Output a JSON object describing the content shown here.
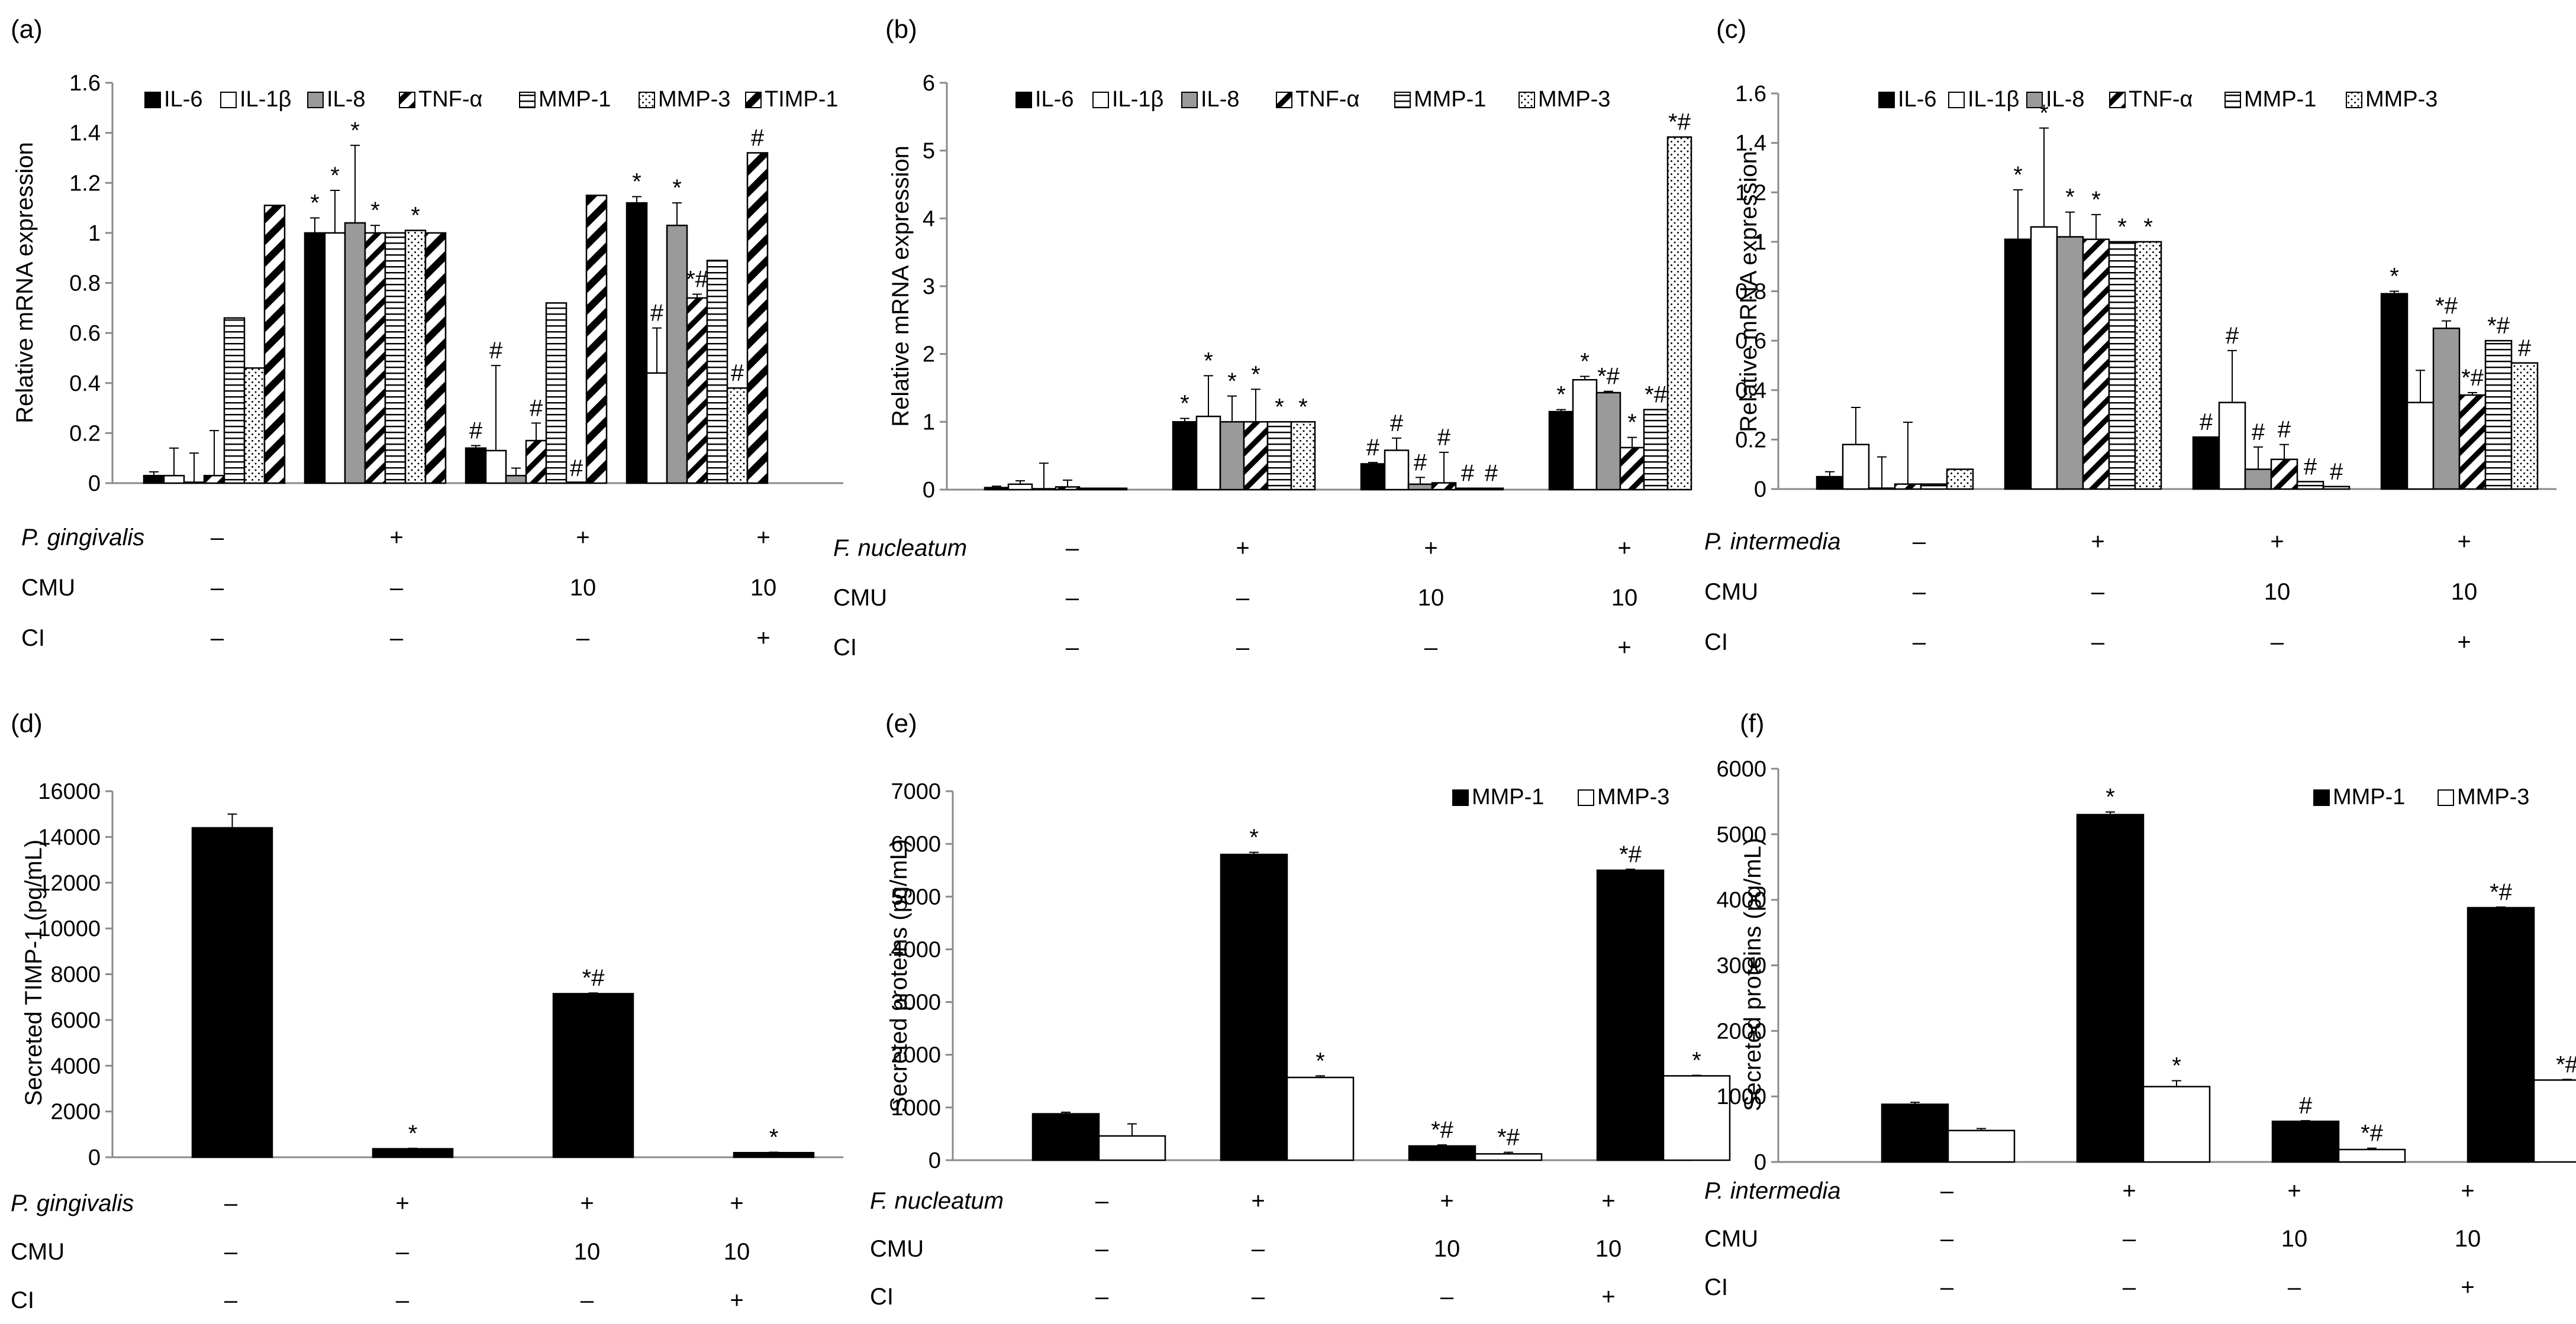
{
  "chart_data": [
    {
      "type": "bar",
      "panel": "(a)",
      "ylabel": "Relative mRNA expression",
      "ylim": [
        0,
        1.6
      ],
      "yticks": [
        0,
        0.2,
        0.4,
        0.6,
        0.8,
        1,
        1.2,
        1.4,
        1.6
      ],
      "legend": "top",
      "series": [
        {
          "name": "IL-6",
          "pattern": "black",
          "values": [
            0.03,
            1.0,
            0.14,
            1.12
          ],
          "errors": [
            0.015,
            0.06,
            0.01,
            0.025
          ],
          "marks": [
            "",
            "*",
            "#",
            "*"
          ]
        },
        {
          "name": "IL-1β",
          "pattern": "white",
          "values": [
            0.03,
            1.0,
            0.13,
            0.44
          ],
          "errors": [
            0.11,
            0.17,
            0.34,
            0.18
          ],
          "marks": [
            "",
            "*",
            "#",
            "#"
          ]
        },
        {
          "name": "IL-8",
          "pattern": "gray",
          "values": [
            0.0,
            1.04,
            0.03,
            1.03
          ],
          "errors": [
            0.12,
            0.31,
            0.03,
            0.09
          ],
          "marks": [
            "",
            "*",
            "",
            "*"
          ]
        },
        {
          "name": "TNF-α",
          "pattern": "diag",
          "values": [
            0.03,
            1.0,
            0.17,
            0.74
          ],
          "errors": [
            0.18,
            0.03,
            0.07,
            0.015
          ],
          "marks": [
            "",
            "*",
            "#",
            "*#"
          ]
        },
        {
          "name": "MMP-1",
          "pattern": "hline",
          "values": [
            0.66,
            1.0,
            0.72,
            0.89
          ],
          "errors": [
            0,
            0,
            0,
            0
          ],
          "marks": [
            "",
            "",
            "",
            ""
          ]
        },
        {
          "name": "MMP-3",
          "pattern": "dots",
          "values": [
            0.46,
            1.01,
            0.0,
            0.38
          ],
          "errors": [
            0,
            0,
            0,
            0
          ],
          "marks": [
            "",
            "*",
            "#",
            "#"
          ]
        },
        {
          "name": "TIMP-1",
          "pattern": "diagthick",
          "values": [
            1.11,
            1.0,
            1.15,
            1.32
          ],
          "errors": [
            0,
            0,
            0,
            0
          ],
          "marks": [
            "",
            "",
            "",
            "#"
          ]
        }
      ],
      "conditions": [
        {
          "label": "P. gingivalis",
          "values": [
            "–",
            "+",
            "+",
            "+"
          ]
        },
        {
          "label": "CMU",
          "values": [
            "–",
            "–",
            "10",
            "10"
          ]
        },
        {
          "label": "CI",
          "values": [
            "–",
            "–",
            "–",
            "+"
          ]
        }
      ]
    },
    {
      "type": "bar",
      "panel": "(b)",
      "ylabel": "Relative mRNA expression",
      "ylim": [
        0,
        6
      ],
      "yticks": [
        0,
        1,
        2,
        3,
        4,
        5,
        6
      ],
      "legend": "top",
      "series": [
        {
          "name": "IL-6",
          "pattern": "black",
          "values": [
            0.03,
            1.0,
            0.38,
            1.15
          ],
          "errors": [
            0.02,
            0.05,
            0.02,
            0.03
          ],
          "marks": [
            "",
            "*",
            "#",
            "*"
          ]
        },
        {
          "name": "IL-1β",
          "pattern": "white",
          "values": [
            0.08,
            1.08,
            0.58,
            1.62
          ],
          "errors": [
            0.05,
            0.6,
            0.18,
            0.05
          ],
          "marks": [
            "",
            "*",
            "#",
            "*"
          ]
        },
        {
          "name": "IL-8",
          "pattern": "gray",
          "values": [
            0.01,
            1.0,
            0.08,
            1.43
          ],
          "errors": [
            0.38,
            0.38,
            0.1,
            0.02
          ],
          "marks": [
            "",
            "*",
            "#",
            "*#"
          ]
        },
        {
          "name": "TNF-α",
          "pattern": "diag",
          "values": [
            0.04,
            1.0,
            0.1,
            0.62
          ],
          "errors": [
            0.1,
            0.48,
            0.45,
            0.15
          ],
          "marks": [
            "",
            "*",
            "#",
            "*"
          ]
        },
        {
          "name": "MMP-1",
          "pattern": "hline",
          "values": [
            0.02,
            1.0,
            0.02,
            1.18
          ],
          "errors": [
            0,
            0,
            0,
            0
          ],
          "marks": [
            "",
            "*",
            "#",
            "*#"
          ]
        },
        {
          "name": "MMP-3",
          "pattern": "dots",
          "values": [
            0.02,
            1.0,
            0.02,
            5.2
          ],
          "errors": [
            0,
            0,
            0,
            0
          ],
          "marks": [
            "",
            "*",
            "#",
            "*#"
          ]
        }
      ],
      "conditions": [
        {
          "label": "F. nucleatum",
          "values": [
            "–",
            "+",
            "+",
            "+"
          ]
        },
        {
          "label": "CMU",
          "values": [
            "–",
            "–",
            "10",
            "10"
          ]
        },
        {
          "label": "CI",
          "values": [
            "–",
            "–",
            "–",
            "+"
          ]
        }
      ]
    },
    {
      "type": "bar",
      "panel": "(c)",
      "ylabel": "Relative mRNA expression",
      "ylim": [
        0,
        1.6
      ],
      "yticks": [
        0,
        0.2,
        0.4,
        0.6,
        0.8,
        1,
        1.2,
        1.4,
        1.6
      ],
      "legend": "top",
      "series": [
        {
          "name": "IL-6",
          "pattern": "black",
          "values": [
            0.05,
            1.01,
            0.21,
            0.79
          ],
          "errors": [
            0.02,
            0.2,
            0.0,
            0.01
          ],
          "marks": [
            "",
            "*",
            "#",
            "*"
          ]
        },
        {
          "name": "IL-1β",
          "pattern": "white",
          "values": [
            0.18,
            1.06,
            0.35,
            0.35
          ],
          "errors": [
            0.15,
            0.4,
            0.21,
            0.13
          ],
          "marks": [
            "",
            "*",
            "#",
            ""
          ]
        },
        {
          "name": "IL-8",
          "pattern": "gray",
          "values": [
            0.0,
            1.02,
            0.08,
            0.65
          ],
          "errors": [
            0.13,
            0.1,
            0.09,
            0.03
          ],
          "marks": [
            "",
            "*",
            "#",
            "*#"
          ]
        },
        {
          "name": "TNF-α",
          "pattern": "diag",
          "values": [
            0.02,
            1.01,
            0.12,
            0.38
          ],
          "errors": [
            0.25,
            0.1,
            0.06,
            0.01
          ],
          "marks": [
            "",
            "*",
            "#",
            "*#"
          ]
        },
        {
          "name": "MMP-1",
          "pattern": "hline",
          "values": [
            0.02,
            1.0,
            0.03,
            0.6
          ],
          "errors": [
            0,
            0,
            0,
            0
          ],
          "marks": [
            "",
            "*",
            "#",
            "*#"
          ]
        },
        {
          "name": "MMP-3",
          "pattern": "dots",
          "values": [
            0.08,
            1.0,
            0.01,
            0.51
          ],
          "errors": [
            0,
            0,
            0,
            0
          ],
          "marks": [
            "",
            "*",
            "#",
            "#"
          ]
        }
      ],
      "conditions": [
        {
          "label": "P. intermedia",
          "values": [
            "–",
            "+",
            "+",
            "+"
          ]
        },
        {
          "label": "CMU",
          "values": [
            "–",
            "–",
            "10",
            "10"
          ]
        },
        {
          "label": "CI",
          "values": [
            "–",
            "–",
            "–",
            "+"
          ]
        }
      ]
    },
    {
      "type": "bar",
      "panel": "(d)",
      "ylabel": "Secreted TIMP-1 (pg/mL)",
      "ylim": [
        0,
        16000
      ],
      "yticks": [
        0,
        2000,
        4000,
        6000,
        8000,
        10000,
        12000,
        14000,
        16000
      ],
      "legend": "none",
      "series": [
        {
          "name": "TIMP-1",
          "pattern": "black",
          "values": [
            14400,
            370,
            7150,
            200
          ],
          "errors": [
            600,
            20,
            30,
            20
          ],
          "marks": [
            "",
            "*",
            "*#",
            "*"
          ]
        }
      ],
      "conditions": [
        {
          "label": "P. gingivalis",
          "values": [
            "–",
            "+",
            "+",
            "+"
          ]
        },
        {
          "label": "CMU",
          "values": [
            "–",
            "–",
            "10",
            "10"
          ]
        },
        {
          "label": "CI",
          "values": [
            "–",
            "–",
            "–",
            "+"
          ]
        }
      ]
    },
    {
      "type": "bar",
      "panel": "(e)",
      "ylabel": "Secreted proteins (pg/mL)",
      "ylim": [
        0,
        7000
      ],
      "yticks": [
        0,
        1000,
        2000,
        3000,
        4000,
        5000,
        6000,
        7000
      ],
      "legend": "top-right",
      "series": [
        {
          "name": "MMP-1",
          "pattern": "black",
          "values": [
            880,
            5800,
            270,
            5500
          ],
          "errors": [
            30,
            40,
            20,
            20
          ],
          "marks": [
            "",
            "*",
            "*#",
            "*#"
          ]
        },
        {
          "name": "MMP-3",
          "pattern": "white",
          "values": [
            460,
            1570,
            120,
            1600
          ],
          "errors": [
            230,
            30,
            30,
            10
          ],
          "marks": [
            "",
            "*",
            "*#",
            "*"
          ]
        }
      ],
      "conditions": [
        {
          "label": "F. nucleatum",
          "values": [
            "–",
            "+",
            "+",
            "+"
          ]
        },
        {
          "label": "CMU",
          "values": [
            "–",
            "–",
            "10",
            "10"
          ]
        },
        {
          "label": "CI",
          "values": [
            "–",
            "–",
            "–",
            "+"
          ]
        }
      ]
    },
    {
      "type": "bar",
      "panel": "(f)",
      "ylabel": "Secreted proteins (pg/mL)",
      "ylim": [
        0,
        6000
      ],
      "yticks": [
        0,
        1000,
        2000,
        3000,
        4000,
        5000,
        6000
      ],
      "legend": "top-right",
      "series": [
        {
          "name": "MMP-1",
          "pattern": "black",
          "values": [
            880,
            5300,
            620,
            3880
          ],
          "errors": [
            30,
            40,
            10,
            10
          ],
          "marks": [
            "",
            "*",
            "#",
            "*#"
          ]
        },
        {
          "name": "MMP-3",
          "pattern": "white",
          "values": [
            480,
            1150,
            190,
            1250
          ],
          "errors": [
            30,
            90,
            20,
            10
          ],
          "marks": [
            "",
            "*",
            "*#",
            "*#"
          ]
        }
      ],
      "conditions": [
        {
          "label": "P. intermedia",
          "values": [
            "–",
            "+",
            "+",
            "+"
          ]
        },
        {
          "label": "CMU",
          "values": [
            "–",
            "–",
            "10",
            "10"
          ]
        },
        {
          "label": "CI",
          "values": [
            "–",
            "–",
            "–",
            "+"
          ]
        }
      ]
    }
  ]
}
